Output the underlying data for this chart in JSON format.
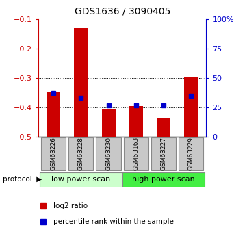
{
  "title": "GDS1636 / 3090405",
  "samples": [
    "GSM63226",
    "GSM63228",
    "GSM63230",
    "GSM63163",
    "GSM63227",
    "GSM63229"
  ],
  "log2_ratio": [
    -0.35,
    -0.13,
    -0.405,
    -0.395,
    -0.435,
    -0.295
  ],
  "percentile_rank_pct": [
    37,
    33,
    27,
    27,
    27,
    35
  ],
  "ylim_left": [
    -0.5,
    -0.1
  ],
  "ylim_right": [
    0,
    100
  ],
  "yticks_left": [
    -0.5,
    -0.4,
    -0.3,
    -0.2,
    -0.1
  ],
  "yticks_right": [
    0,
    25,
    50,
    75,
    100
  ],
  "ytick_labels_right": [
    "0",
    "25",
    "50",
    "75",
    "100%"
  ],
  "grid_lines": [
    -0.2,
    -0.3,
    -0.4
  ],
  "bar_color": "#cc0000",
  "dot_color": "#0000cc",
  "protocol_groups": [
    {
      "label": "low power scan",
      "start": 0,
      "end": 3,
      "color": "#ccffcc"
    },
    {
      "label": "high power scan",
      "start": 3,
      "end": 6,
      "color": "#44ee44"
    }
  ],
  "legend_items": [
    {
      "label": "log2 ratio",
      "color": "#cc0000"
    },
    {
      "label": "percentile rank within the sample",
      "color": "#0000cc"
    }
  ],
  "left_tick_color": "#cc0000",
  "right_tick_color": "#0000cc",
  "bar_width": 0.5,
  "figsize": [
    3.61,
    3.45
  ],
  "dpi": 100
}
